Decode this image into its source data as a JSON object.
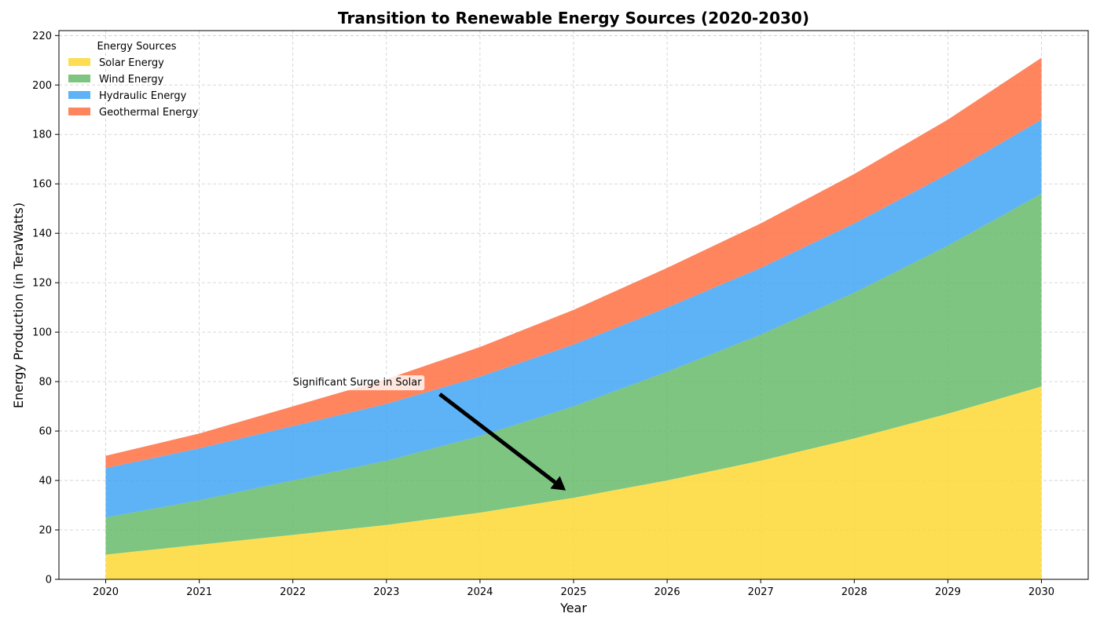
{
  "chart_data": {
    "type": "area",
    "stacked": true,
    "title": "Transition to Renewable Energy Sources (2020-2030)",
    "xlabel": "Year",
    "ylabel": "Energy Production (in TeraWatts)",
    "x": [
      2020,
      2021,
      2022,
      2023,
      2024,
      2025,
      2026,
      2027,
      2028,
      2029,
      2030
    ],
    "xlim": [
      2019.5,
      2030.5
    ],
    "ylim": [
      0,
      222
    ],
    "yticks": [
      0,
      20,
      40,
      60,
      80,
      100,
      120,
      140,
      160,
      180,
      200,
      220
    ],
    "grid": true,
    "legend": {
      "title": "Energy Sources",
      "location": "top-left"
    },
    "series": [
      {
        "name": "Solar Energy",
        "color": "#fdd835",
        "values": [
          10,
          14,
          18,
          22,
          27,
          33,
          40,
          48,
          57,
          67,
          78
        ]
      },
      {
        "name": "Wind Energy",
        "color": "#66bb6a",
        "values": [
          15,
          18,
          22,
          26,
          31,
          37,
          44,
          51,
          59,
          68,
          78
        ]
      },
      {
        "name": "Hydraulic Energy",
        "color": "#42a5f5",
        "values": [
          20,
          21,
          22,
          23,
          24,
          25,
          26,
          27,
          28,
          29,
          30
        ]
      },
      {
        "name": "Geothermal Energy",
        "color": "#ff7043",
        "values": [
          5,
          6,
          8,
          10,
          12,
          14,
          16,
          18,
          20,
          22,
          25
        ]
      }
    ],
    "annotation": {
      "text": "Significant Surge in Solar",
      "text_at": [
        2022,
        80
      ],
      "arrow_to": [
        2025,
        35
      ]
    }
  }
}
